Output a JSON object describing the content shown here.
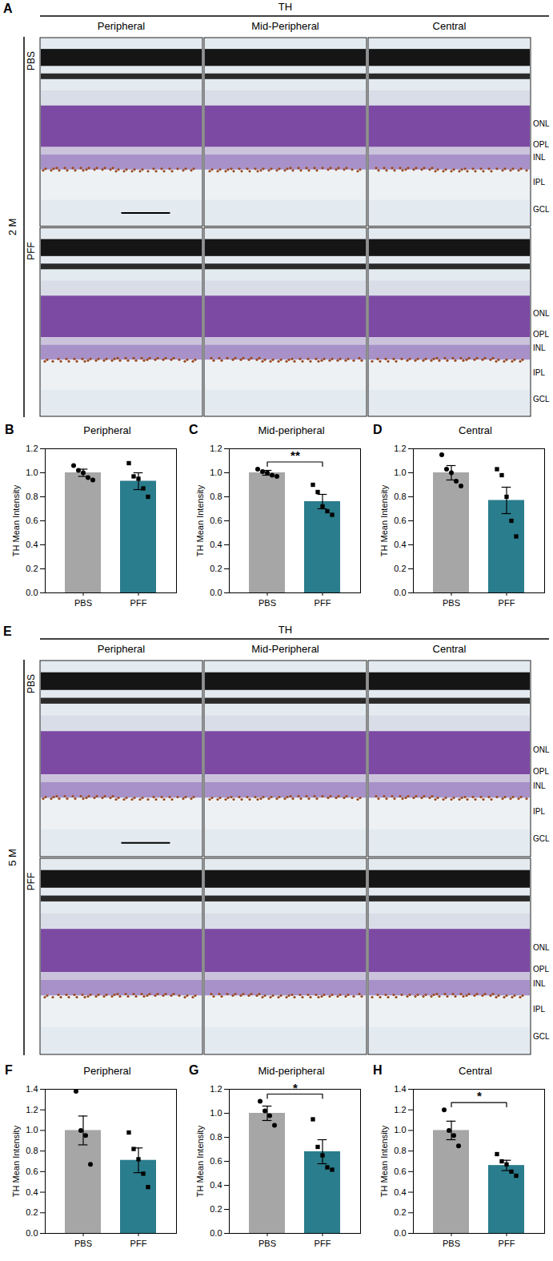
{
  "image_panels": [
    {
      "letter": "A",
      "marker": "TH",
      "group": "2 M",
      "columns": [
        "Peripheral",
        "Mid-Peripheral",
        "Central"
      ],
      "rows": [
        "PBS",
        "PFF"
      ],
      "layers": [
        "ONL",
        "OPL",
        "INL",
        "IPL",
        "GCL"
      ]
    },
    {
      "letter": "E",
      "marker": "TH",
      "group": "5 M",
      "columns": [
        "Peripheral",
        "Mid-Peripheral",
        "Central"
      ],
      "rows": [
        "PBS",
        "PFF"
      ],
      "layers": [
        "ONL",
        "OPL",
        "INL",
        "IPL",
        "GCL"
      ]
    }
  ],
  "chart_data": [
    {
      "letter": "B",
      "type": "bar",
      "title": "Peripheral",
      "ylabel": "TH Mean Intensity",
      "categories": [
        "PBS",
        "PFF"
      ],
      "values": [
        1.0,
        0.93
      ],
      "errors": [
        0.03,
        0.07
      ],
      "points": [
        [
          1.06,
          1.02,
          1.0,
          0.96,
          0.94
        ],
        [
          1.08,
          0.97,
          0.95,
          0.87,
          0.8
        ]
      ],
      "colors": [
        "#a6a6a6",
        "#2a7d8c"
      ],
      "markers": [
        "circle",
        "square"
      ],
      "ylim": [
        0,
        1.2
      ],
      "yticks": [
        {
          "value": 0,
          "label": "0.0"
        },
        0.2,
        0.4,
        0.6,
        0.8,
        {
          "value": 1,
          "label": "1.0"
        },
        1.2
      ]
    },
    {
      "letter": "C",
      "type": "bar",
      "title": "Mid-peripheral",
      "ylabel": "TH Mean Intensity",
      "categories": [
        "PBS",
        "PFF"
      ],
      "values": [
        1.0,
        0.76
      ],
      "errors": [
        0.02,
        0.06
      ],
      "points": [
        [
          1.03,
          1.01,
          1.0,
          0.98,
          0.97
        ],
        [
          0.9,
          0.84,
          0.72,
          0.68,
          0.65
        ]
      ],
      "colors": [
        "#a6a6a6",
        "#2a7d8c"
      ],
      "markers": [
        "circle",
        "square"
      ],
      "ylim": [
        0,
        1.2
      ],
      "yticks": [
        {
          "value": 0,
          "label": "0.0"
        },
        0.2,
        0.4,
        0.6,
        0.8,
        {
          "value": 1,
          "label": "1.0"
        },
        1.2
      ],
      "significance": "**"
    },
    {
      "letter": "D",
      "type": "bar",
      "title": "Central",
      "ylabel": "TH Mean Intensity",
      "categories": [
        "PBS",
        "PFF"
      ],
      "values": [
        1.0,
        0.77
      ],
      "errors": [
        0.06,
        0.11
      ],
      "points": [
        [
          1.15,
          1.03,
          1.0,
          0.93,
          0.89
        ],
        [
          1.03,
          0.98,
          0.8,
          0.6,
          0.47
        ]
      ],
      "colors": [
        "#a6a6a6",
        "#2a7d8c"
      ],
      "markers": [
        "circle",
        "square"
      ],
      "ylim": [
        0,
        1.2
      ],
      "yticks": [
        {
          "value": 0,
          "label": "0.0"
        },
        0.2,
        0.4,
        0.6,
        0.8,
        {
          "value": 1,
          "label": "1.0"
        },
        1.2
      ]
    },
    {
      "letter": "F",
      "type": "bar",
      "title": "Peripheral",
      "ylabel": "TH Mean Intensity",
      "categories": [
        "PBS",
        "PFF"
      ],
      "values": [
        1.0,
        0.71
      ],
      "errors": [
        0.14,
        0.12
      ],
      "points": [
        [
          1.38,
          1.0,
          0.95,
          0.67
        ],
        [
          0.98,
          0.82,
          0.72,
          0.58,
          0.45
        ]
      ],
      "colors": [
        "#a6a6a6",
        "#2a7d8c"
      ],
      "markers": [
        "circle",
        "square"
      ],
      "ylim": [
        0,
        1.4
      ],
      "yticks": [
        {
          "value": 0,
          "label": "0.0"
        },
        0.2,
        0.4,
        0.6,
        0.8,
        {
          "value": 1,
          "label": "1.0"
        },
        1.2,
        1.4
      ]
    },
    {
      "letter": "G",
      "type": "bar",
      "title": "Mid-peripheral",
      "ylabel": "TH Mean Intensity",
      "categories": [
        "PBS",
        "PFF"
      ],
      "values": [
        1.0,
        0.68
      ],
      "errors": [
        0.06,
        0.1
      ],
      "points": [
        [
          1.1,
          1.02,
          0.98,
          0.9
        ],
        [
          0.95,
          0.72,
          0.65,
          0.55,
          0.53
        ]
      ],
      "colors": [
        "#a6a6a6",
        "#2a7d8c"
      ],
      "markers": [
        "circle",
        "square"
      ],
      "ylim": [
        0,
        1.2
      ],
      "yticks": [
        {
          "value": 0,
          "label": "0.0"
        },
        0.2,
        0.4,
        0.6,
        0.8,
        {
          "value": 1,
          "label": "1.0"
        },
        1.2
      ],
      "significance": "*"
    },
    {
      "letter": "H",
      "type": "bar",
      "title": "Central",
      "ylabel": "TH Mean Intensity",
      "categories": [
        "PBS",
        "PFF"
      ],
      "values": [
        1.0,
        0.66
      ],
      "errors": [
        0.09,
        0.05
      ],
      "points": [
        [
          1.2,
          1.0,
          0.95,
          0.85
        ],
        [
          0.77,
          0.7,
          0.67,
          0.6,
          0.56
        ]
      ],
      "colors": [
        "#a6a6a6",
        "#2a7d8c"
      ],
      "markers": [
        "circle",
        "square"
      ],
      "ylim": [
        0,
        1.4
      ],
      "yticks": [
        {
          "value": 0,
          "label": "0.0"
        },
        0.2,
        0.4,
        0.6,
        0.8,
        {
          "value": 1,
          "label": "1.0"
        },
        1.2,
        1.4
      ],
      "significance": "*"
    }
  ]
}
